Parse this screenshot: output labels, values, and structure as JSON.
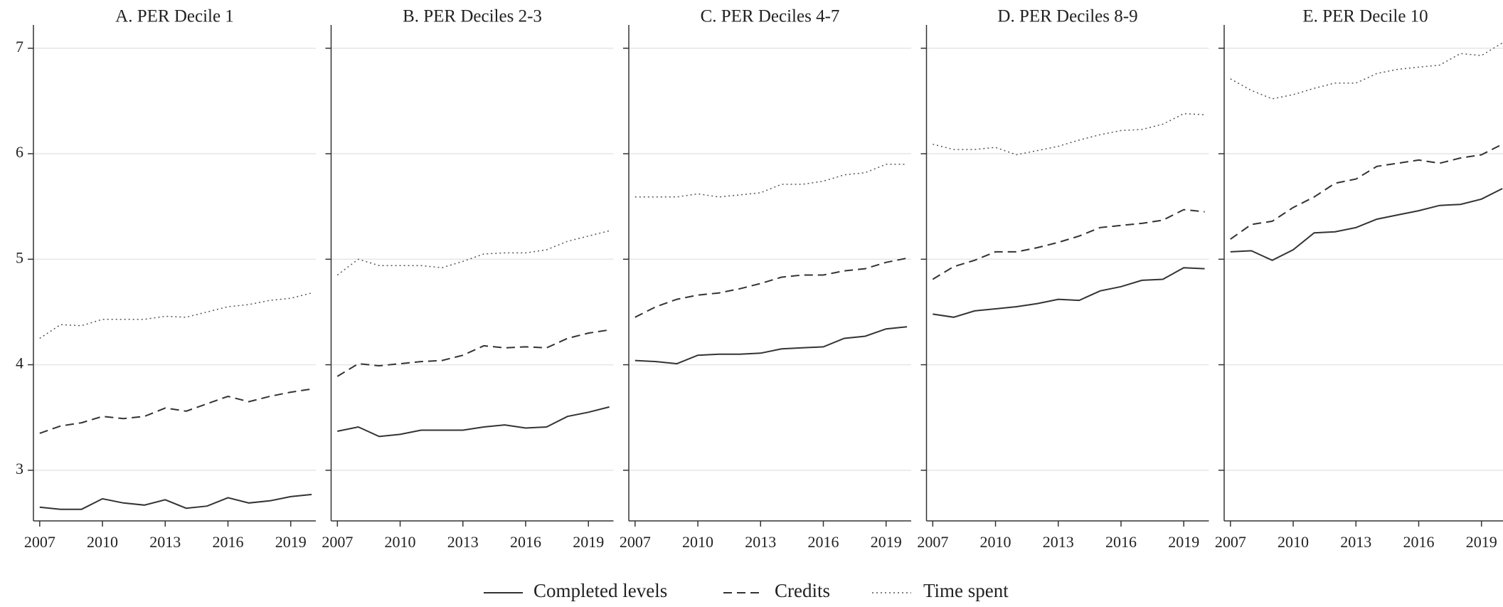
{
  "chart_data": [
    {
      "type": "line",
      "title": "A. PER Decile 1",
      "x": [
        2007,
        2008,
        2009,
        2010,
        2011,
        2012,
        2013,
        2014,
        2015,
        2016,
        2017,
        2018,
        2019,
        2020
      ],
      "xlim": [
        2006.7,
        2020.2
      ],
      "xticks": [
        2007,
        2010,
        2013,
        2016,
        2019
      ],
      "ylim": [
        2.52,
        7.14
      ],
      "yticks": [
        3,
        4,
        5,
        6,
        7
      ],
      "grid": true,
      "series": [
        {
          "name": "Completed levels",
          "color": "#333333",
          "style": "solid",
          "values": [
            2.65,
            2.63,
            2.63,
            2.73,
            2.69,
            2.67,
            2.72,
            2.64,
            2.66,
            2.74,
            2.69,
            2.71,
            2.75,
            2.77
          ]
        },
        {
          "name": "Credits",
          "color": "#333333",
          "style": "dashed",
          "values": [
            3.35,
            3.42,
            3.45,
            3.51,
            3.49,
            3.51,
            3.59,
            3.56,
            3.63,
            3.7,
            3.65,
            3.7,
            3.74,
            3.77
          ]
        },
        {
          "name": "Time spent",
          "color": "#555555",
          "style": "dotted",
          "values": [
            4.25,
            4.38,
            4.37,
            4.43,
            4.43,
            4.43,
            4.46,
            4.45,
            4.5,
            4.55,
            4.57,
            4.61,
            4.63,
            4.68
          ]
        }
      ]
    },
    {
      "type": "line",
      "title": "B. PER Deciles 2-3",
      "x": [
        2007,
        2008,
        2009,
        2010,
        2011,
        2012,
        2013,
        2014,
        2015,
        2016,
        2017,
        2018,
        2019,
        2020
      ],
      "xlim": [
        2006.7,
        2020.2
      ],
      "xticks": [
        2007,
        2010,
        2013,
        2016,
        2019
      ],
      "ylim": [
        2.52,
        7.14
      ],
      "yticks": [
        3,
        4,
        5,
        6,
        7
      ],
      "grid": true,
      "series": [
        {
          "name": "Completed levels",
          "color": "#333333",
          "style": "solid",
          "values": [
            3.37,
            3.41,
            3.32,
            3.34,
            3.38,
            3.38,
            3.38,
            3.41,
            3.43,
            3.4,
            3.41,
            3.51,
            3.55,
            3.6
          ]
        },
        {
          "name": "Credits",
          "color": "#333333",
          "style": "dashed",
          "values": [
            3.89,
            4.01,
            3.99,
            4.01,
            4.03,
            4.04,
            4.09,
            4.18,
            4.16,
            4.17,
            4.16,
            4.25,
            4.3,
            4.33
          ]
        },
        {
          "name": "Time spent",
          "color": "#555555",
          "style": "dotted",
          "values": [
            4.85,
            5.0,
            4.94,
            4.94,
            4.94,
            4.92,
            4.98,
            5.05,
            5.06,
            5.06,
            5.09,
            5.17,
            5.22,
            5.27
          ]
        }
      ]
    },
    {
      "type": "line",
      "title": "C. PER Deciles 4-7",
      "x": [
        2007,
        2008,
        2009,
        2010,
        2011,
        2012,
        2013,
        2014,
        2015,
        2016,
        2017,
        2018,
        2019,
        2020
      ],
      "xlim": [
        2006.7,
        2020.2
      ],
      "xticks": [
        2007,
        2010,
        2013,
        2016,
        2019
      ],
      "ylim": [
        2.52,
        7.14
      ],
      "yticks": [
        3,
        4,
        5,
        6,
        7
      ],
      "grid": true,
      "series": [
        {
          "name": "Completed levels",
          "color": "#333333",
          "style": "solid",
          "values": [
            4.04,
            4.03,
            4.01,
            4.09,
            4.1,
            4.1,
            4.11,
            4.15,
            4.16,
            4.17,
            4.25,
            4.27,
            4.34,
            4.36
          ]
        },
        {
          "name": "Credits",
          "color": "#333333",
          "style": "dashed",
          "values": [
            4.45,
            4.55,
            4.62,
            4.66,
            4.68,
            4.72,
            4.77,
            4.83,
            4.85,
            4.85,
            4.89,
            4.91,
            4.97,
            5.01
          ]
        },
        {
          "name": "Time spent",
          "color": "#555555",
          "style": "dotted",
          "values": [
            5.59,
            5.59,
            5.59,
            5.62,
            5.59,
            5.61,
            5.63,
            5.71,
            5.71,
            5.74,
            5.8,
            5.82,
            5.9,
            5.9
          ]
        }
      ]
    },
    {
      "type": "line",
      "title": "D. PER Deciles 8-9",
      "x": [
        2007,
        2008,
        2009,
        2010,
        2011,
        2012,
        2013,
        2014,
        2015,
        2016,
        2017,
        2018,
        2019,
        2020
      ],
      "xlim": [
        2006.7,
        2020.2
      ],
      "xticks": [
        2007,
        2010,
        2013,
        2016,
        2019
      ],
      "ylim": [
        2.52,
        7.14
      ],
      "yticks": [
        3,
        4,
        5,
        6,
        7
      ],
      "grid": true,
      "series": [
        {
          "name": "Completed levels",
          "color": "#333333",
          "style": "solid",
          "values": [
            4.48,
            4.45,
            4.51,
            4.53,
            4.55,
            4.58,
            4.62,
            4.61,
            4.7,
            4.74,
            4.8,
            4.81,
            4.92,
            4.91
          ]
        },
        {
          "name": "Credits",
          "color": "#333333",
          "style": "dashed",
          "values": [
            4.81,
            4.93,
            4.99,
            5.07,
            5.07,
            5.11,
            5.16,
            5.22,
            5.3,
            5.32,
            5.34,
            5.37,
            5.47,
            5.45
          ]
        },
        {
          "name": "Time spent",
          "color": "#555555",
          "style": "dotted",
          "values": [
            6.09,
            6.04,
            6.04,
            6.06,
            5.99,
            6.03,
            6.07,
            6.13,
            6.18,
            6.22,
            6.23,
            6.28,
            6.38,
            6.37
          ]
        }
      ]
    },
    {
      "type": "line",
      "title": "E. PER Decile 10",
      "x": [
        2007,
        2008,
        2009,
        2010,
        2011,
        2012,
        2013,
        2014,
        2015,
        2016,
        2017,
        2018,
        2019,
        2020
      ],
      "xlim": [
        2006.7,
        2020.2
      ],
      "xticks": [
        2007,
        2010,
        2013,
        2016,
        2019
      ],
      "ylim": [
        2.52,
        7.14
      ],
      "yticks": [
        3,
        4,
        5,
        6,
        7
      ],
      "grid": true,
      "series": [
        {
          "name": "Completed levels",
          "color": "#333333",
          "style": "solid",
          "values": [
            5.07,
            5.08,
            4.99,
            5.09,
            5.25,
            5.26,
            5.3,
            5.38,
            5.42,
            5.46,
            5.51,
            5.52,
            5.57,
            5.67
          ]
        },
        {
          "name": "Credits",
          "color": "#333333",
          "style": "dashed",
          "values": [
            5.19,
            5.33,
            5.36,
            5.49,
            5.59,
            5.72,
            5.76,
            5.88,
            5.91,
            5.94,
            5.91,
            5.96,
            5.99,
            6.09
          ]
        },
        {
          "name": "Time spent",
          "color": "#555555",
          "style": "dotted",
          "values": [
            6.71,
            6.6,
            6.52,
            6.56,
            6.62,
            6.67,
            6.67,
            6.76,
            6.8,
            6.82,
            6.84,
            6.95,
            6.93,
            7.05
          ]
        }
      ]
    }
  ]
}
